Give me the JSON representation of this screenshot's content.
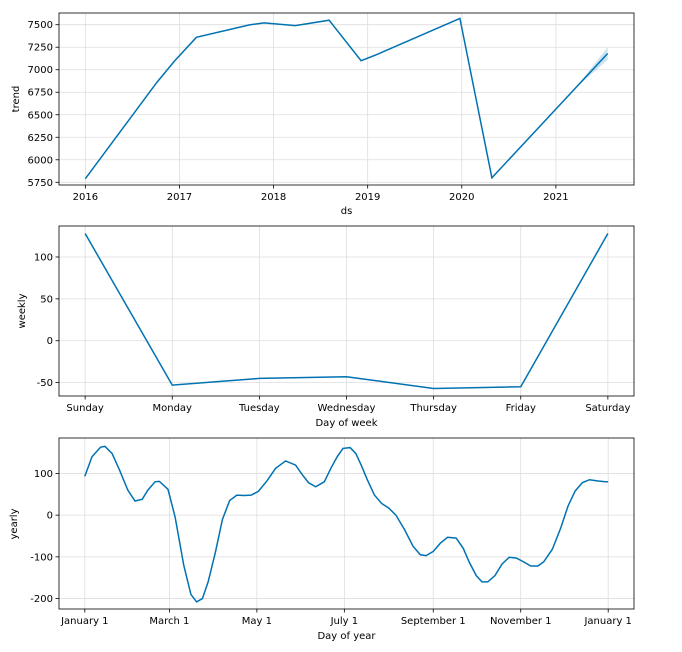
{
  "chart_data": [
    {
      "type": "line",
      "xlabel": "ds",
      "ylabel": "trend",
      "x_tick_labels": [
        "2016",
        "2017",
        "2018",
        "2019",
        "2020",
        "2021"
      ],
      "x_ticks": [
        2016,
        2017,
        2018,
        2019,
        2020,
        2021
      ],
      "y_ticks": [
        5750,
        6000,
        6250,
        6500,
        6750,
        7000,
        7250,
        7500
      ],
      "xlim": [
        2015.72,
        2021.83
      ],
      "ylim": [
        5720,
        7630
      ],
      "grid": true,
      "color": "#0072b2",
      "uncertainty_band": {
        "from_x": 2021.2,
        "half_width": [
          0,
          70
        ]
      },
      "series": [
        {
          "x": [
            2016.0,
            2016.76,
            2016.95,
            2017.18,
            2017.75,
            2017.9,
            2018.23,
            2018.59,
            2018.93,
            2019.1,
            2019.98,
            2020.32,
            2021.55
          ],
          "y": [
            5790,
            6860,
            7100,
            7360,
            7500,
            7520,
            7490,
            7550,
            7100,
            7170,
            7570,
            5800,
            7180
          ]
        }
      ]
    },
    {
      "type": "line",
      "xlabel": "Day of week",
      "ylabel": "weekly",
      "categories": [
        "Sunday",
        "Monday",
        "Tuesday",
        "Wednesday",
        "Thursday",
        "Friday",
        "Saturday"
      ],
      "y_ticks": [
        -50,
        0,
        50,
        100
      ],
      "ylim": [
        -66,
        137
      ],
      "grid": true,
      "color": "#0072b2",
      "series": [
        {
          "values": [
            128,
            -53,
            -45,
            -43,
            -57,
            -55,
            128
          ]
        }
      ]
    },
    {
      "type": "line",
      "xlabel": "Day of year",
      "ylabel": "yearly",
      "x_tick_labels": [
        "January 1",
        "March 1",
        "May 1",
        "July 1",
        "September 1",
        "November 1",
        "January 1"
      ],
      "x_ticks": [
        0,
        59,
        120,
        181,
        243,
        304,
        365
      ],
      "y_ticks": [
        -200,
        -100,
        0,
        100
      ],
      "xlim": [
        -18,
        383
      ],
      "ylim": [
        -225,
        185
      ],
      "grid": true,
      "color": "#0072b2",
      "series": [
        {
          "x": [
            0,
            5,
            11,
            14,
            19,
            24,
            30,
            35,
            40,
            44,
            49,
            52,
            58,
            63,
            69,
            74,
            78,
            82,
            86,
            91,
            96,
            101,
            106,
            111,
            116,
            121,
            127,
            133,
            140,
            147,
            151,
            156,
            161,
            167,
            172,
            176,
            180,
            185,
            189,
            193,
            197,
            202,
            207,
            212,
            217,
            223,
            229,
            234,
            238,
            243,
            248,
            253,
            259,
            264,
            268,
            273,
            277,
            281,
            286,
            291,
            296,
            301,
            306,
            311,
            316,
            320,
            326,
            332,
            337,
            342,
            347,
            352,
            358,
            363,
            365
          ],
          "y": [
            93,
            140,
            163,
            165,
            148,
            110,
            60,
            34,
            38,
            60,
            80,
            81,
            62,
            -5,
            -120,
            -190,
            -208,
            -200,
            -160,
            -90,
            -10,
            35,
            48,
            47,
            48,
            57,
            82,
            112,
            130,
            120,
            100,
            78,
            68,
            80,
            115,
            140,
            160,
            162,
            148,
            118,
            85,
            48,
            28,
            17,
            0,
            -35,
            -75,
            -95,
            -97,
            -87,
            -67,
            -53,
            -55,
            -80,
            -112,
            -145,
            -160,
            -160,
            -145,
            -117,
            -101,
            -103,
            -112,
            -122,
            -122,
            -112,
            -82,
            -30,
            22,
            58,
            78,
            85,
            82,
            80,
            80
          ]
        }
      ]
    }
  ]
}
